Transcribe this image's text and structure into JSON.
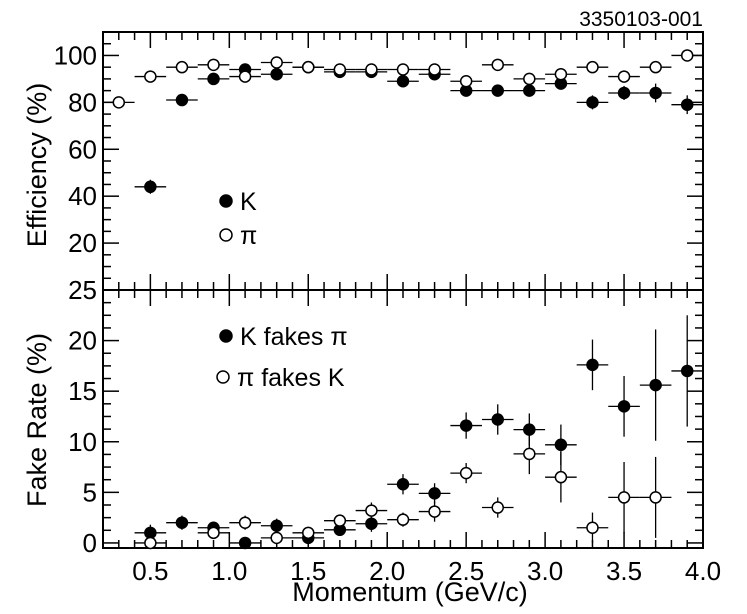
{
  "figure_id": "3350103-001",
  "chart_data": [
    {
      "type": "scatter",
      "ylabel": "Efficiency (%)",
      "xlim": [
        0.2,
        4.0
      ],
      "ylim": [
        0,
        110
      ],
      "yticks": [
        20,
        40,
        60,
        80,
        100
      ],
      "series": [
        {
          "name": "K",
          "marker": "filled-circle",
          "points": [
            {
              "x": 0.5,
              "y": 44,
              "err": 3
            },
            {
              "x": 0.7,
              "y": 81,
              "err": 2
            },
            {
              "x": 0.9,
              "y": 90,
              "err": 2
            },
            {
              "x": 1.1,
              "y": 94,
              "err": 2
            },
            {
              "x": 1.3,
              "y": 92,
              "err": 2
            },
            {
              "x": 1.5,
              "y": 95,
              "err": 2
            },
            {
              "x": 1.7,
              "y": 93,
              "err": 2
            },
            {
              "x": 1.9,
              "y": 93,
              "err": 2
            },
            {
              "x": 2.1,
              "y": 89,
              "err": 2
            },
            {
              "x": 2.3,
              "y": 92,
              "err": 2
            },
            {
              "x": 2.5,
              "y": 85,
              "err": 2
            },
            {
              "x": 2.7,
              "y": 85,
              "err": 2
            },
            {
              "x": 2.9,
              "y": 85,
              "err": 2
            },
            {
              "x": 3.1,
              "y": 88,
              "err": 2
            },
            {
              "x": 3.3,
              "y": 80,
              "err": 3
            },
            {
              "x": 3.5,
              "y": 84,
              "err": 3
            },
            {
              "x": 3.7,
              "y": 84,
              "err": 4
            },
            {
              "x": 3.9,
              "y": 79,
              "err": 4
            }
          ]
        },
        {
          "name": "π",
          "marker": "open-circle",
          "points": [
            {
              "x": 0.3,
              "y": 80,
              "err": 1
            },
            {
              "x": 0.5,
              "y": 91,
              "err": 1
            },
            {
              "x": 0.7,
              "y": 95,
              "err": 1
            },
            {
              "x": 0.9,
              "y": 96,
              "err": 1
            },
            {
              "x": 1.1,
              "y": 91,
              "err": 1
            },
            {
              "x": 1.3,
              "y": 97,
              "err": 1
            },
            {
              "x": 1.5,
              "y": 95,
              "err": 1
            },
            {
              "x": 1.7,
              "y": 94,
              "err": 1
            },
            {
              "x": 1.9,
              "y": 94,
              "err": 1
            },
            {
              "x": 2.1,
              "y": 94,
              "err": 1
            },
            {
              "x": 2.3,
              "y": 94,
              "err": 1
            },
            {
              "x": 2.5,
              "y": 89,
              "err": 1
            },
            {
              "x": 2.7,
              "y": 96,
              "err": 1
            },
            {
              "x": 2.9,
              "y": 90,
              "err": 1
            },
            {
              "x": 3.1,
              "y": 92,
              "err": 1
            },
            {
              "x": 3.3,
              "y": 95,
              "err": 1
            },
            {
              "x": 3.5,
              "y": 91,
              "err": 2
            },
            {
              "x": 3.7,
              "y": 95,
              "err": 2
            },
            {
              "x": 3.9,
              "y": 100,
              "err": 1
            }
          ]
        }
      ]
    },
    {
      "type": "scatter",
      "ylabel": "Fake Rate (%)",
      "xlabel": "Momentum (GeV/c)",
      "xlim": [
        0.2,
        4.0
      ],
      "ylim": [
        -0.5,
        25
      ],
      "yticks": [
        0,
        5,
        10,
        15,
        20,
        25
      ],
      "xticks": [
        0.5,
        1.0,
        1.5,
        2.0,
        2.5,
        3.0,
        3.5,
        4.0
      ],
      "xtick_labels": [
        "0.5",
        "1.0",
        "1.5",
        "2.0",
        "2.5",
        "3.0",
        "3.5",
        "4.0"
      ],
      "series": [
        {
          "name": "K fakes π",
          "marker": "filled-circle",
          "points": [
            {
              "x": 0.5,
              "y": 1.0,
              "err": 0.8
            },
            {
              "x": 0.7,
              "y": 2.0,
              "err": 0.7
            },
            {
              "x": 0.9,
              "y": 1.5,
              "err": 0.6
            },
            {
              "x": 1.1,
              "y": 0.0,
              "err": 0.5
            },
            {
              "x": 1.3,
              "y": 1.7,
              "err": 0.7
            },
            {
              "x": 1.5,
              "y": 0.5,
              "err": 0.5
            },
            {
              "x": 1.7,
              "y": 1.3,
              "err": 0.6
            },
            {
              "x": 1.9,
              "y": 1.9,
              "err": 0.8
            },
            {
              "x": 2.1,
              "y": 5.8,
              "err": 1.0
            },
            {
              "x": 2.3,
              "y": 4.9,
              "err": 1.0
            },
            {
              "x": 2.5,
              "y": 11.6,
              "err": 1.3
            },
            {
              "x": 2.7,
              "y": 12.2,
              "err": 1.5
            },
            {
              "x": 2.9,
              "y": 11.2,
              "err": 1.6
            },
            {
              "x": 3.1,
              "y": 9.7,
              "err": 2.0
            },
            {
              "x": 3.3,
              "y": 17.6,
              "err": 2.5
            },
            {
              "x": 3.5,
              "y": 13.5,
              "err": 3.0
            },
            {
              "x": 3.7,
              "y": 15.6,
              "err": 5.5
            },
            {
              "x": 3.9,
              "y": 17.0,
              "err": 5.5
            }
          ]
        },
        {
          "name": "π fakes K",
          "marker": "open-circle",
          "points": [
            {
              "x": 0.5,
              "y": 0.0,
              "err": 0.5
            },
            {
              "x": 0.9,
              "y": 1.0,
              "err": 0.5
            },
            {
              "x": 1.1,
              "y": 2.0,
              "err": 0.7
            },
            {
              "x": 1.3,
              "y": 0.5,
              "err": 0.5
            },
            {
              "x": 1.5,
              "y": 1.0,
              "err": 0.5
            },
            {
              "x": 1.7,
              "y": 2.2,
              "err": 0.6
            },
            {
              "x": 1.9,
              "y": 3.2,
              "err": 0.8
            },
            {
              "x": 2.1,
              "y": 2.3,
              "err": 0.7
            },
            {
              "x": 2.3,
              "y": 3.1,
              "err": 1.0
            },
            {
              "x": 2.5,
              "y": 6.9,
              "err": 1.0
            },
            {
              "x": 2.7,
              "y": 3.5,
              "err": 1.0
            },
            {
              "x": 2.9,
              "y": 8.8,
              "err": 2.0
            },
            {
              "x": 3.1,
              "y": 6.5,
              "err": 2.5
            },
            {
              "x": 3.3,
              "y": 1.5,
              "err": 1.5
            },
            {
              "x": 3.5,
              "y": 4.5,
              "err": 3.5
            },
            {
              "x": 3.7,
              "y": 4.5,
              "err": 4.0
            }
          ]
        }
      ]
    }
  ]
}
